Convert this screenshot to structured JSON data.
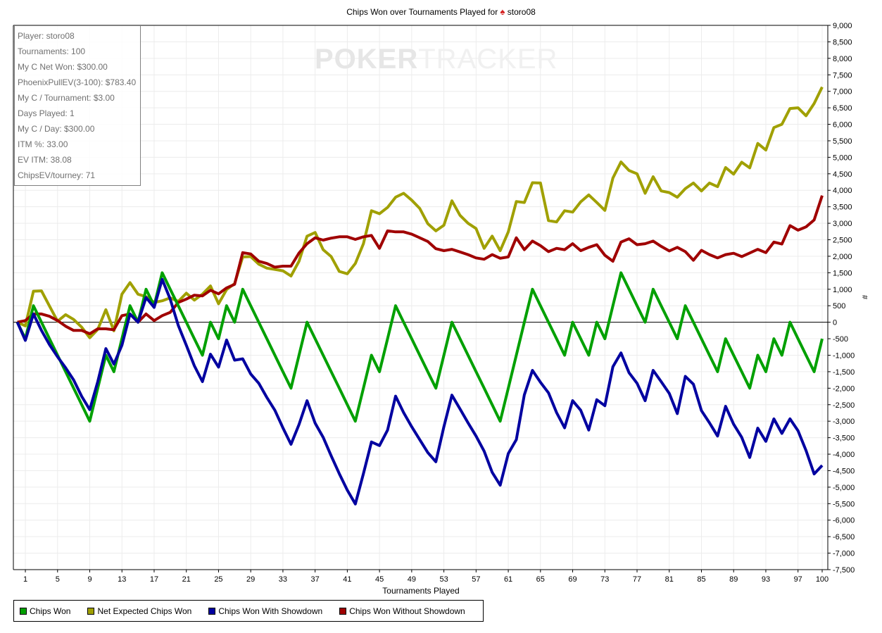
{
  "chart_data": {
    "type": "line",
    "title": "Chips Won over Tournaments Played for",
    "title_player": "storo08",
    "xlabel": "Tournaments Played",
    "ylabel": "#",
    "xlim": [
      0,
      100
    ],
    "ylim": [
      -7500,
      9000
    ],
    "grid": true,
    "legend_position": "bottom",
    "x_ticks": [
      "1",
      "5",
      "9",
      "13",
      "17",
      "21",
      "25",
      "29",
      "33",
      "37",
      "41",
      "45",
      "49",
      "53",
      "57",
      "61",
      "65",
      "69",
      "73",
      "77",
      "81",
      "85",
      "89",
      "93",
      "97",
      "100"
    ],
    "y_ticks": [
      "9,000",
      "8,500",
      "8,000",
      "7,500",
      "7,000",
      "6,500",
      "6,000",
      "5,500",
      "5,000",
      "4,500",
      "4,000",
      "3,500",
      "3,000",
      "2,500",
      "2,000",
      "1,500",
      "1,000",
      "500",
      "0",
      "-500",
      "-1,000",
      "-1,500",
      "-2,000",
      "-2,500",
      "-3,000",
      "-3,500",
      "-4,000",
      "-4,500",
      "-5,000",
      "-5,500",
      "-6,000",
      "-6,500",
      "-7,000",
      "-7,500"
    ],
    "series": [
      {
        "name": "Chips Won",
        "color": "#00a000",
        "values": [
          0,
          -500,
          500,
          0,
          -500,
          -1000,
          -1500,
          -2000,
          -2500,
          -3000,
          -2000,
          -1000,
          -1500,
          -500,
          500,
          0,
          1000,
          500,
          1500,
          1000,
          500,
          0,
          -500,
          -1000,
          0,
          -500,
          500,
          0,
          1000,
          500,
          0,
          -500,
          -1000,
          -1500,
          -2000,
          -1000,
          0,
          -500,
          -1000,
          -1500,
          -2000,
          -2500,
          -3000,
          -2000,
          -1000,
          -1500,
          -500,
          500,
          0,
          -500,
          -1000,
          -1500,
          -2000,
          -1000,
          0,
          -500,
          -1000,
          -1500,
          -2000,
          -2500,
          -3000,
          -2000,
          -1000,
          0,
          1000,
          500,
          0,
          -500,
          -1000,
          0,
          -500,
          -1000,
          0,
          -500,
          500,
          1500,
          1000,
          500,
          0,
          1000,
          500,
          0,
          -500,
          500,
          0,
          -500,
          -1000,
          -1500,
          -500,
          -1000,
          -1500,
          -2000,
          -1000,
          -1500,
          -500,
          -1000,
          0,
          -500,
          -1000,
          -1500,
          -500
        ]
      },
      {
        "name": "Net Expected Chips Won",
        "color": "#a0a000",
        "values": [
          0,
          -110,
          940,
          950,
          490,
          30,
          230,
          85,
          -150,
          -470,
          -220,
          380,
          -260,
          850,
          1200,
          850,
          775,
          600,
          650,
          740,
          630,
          880,
          670,
          850,
          1100,
          560,
          990,
          1170,
          1980,
          1990,
          1760,
          1640,
          1600,
          1560,
          1400,
          1850,
          2610,
          2720,
          2200,
          1990,
          1540,
          1470,
          1780,
          2380,
          3380,
          3290,
          3480,
          3790,
          3910,
          3700,
          3450,
          2990,
          2770,
          2940,
          3680,
          3240,
          3000,
          2840,
          2240,
          2610,
          2170,
          2740,
          3660,
          3630,
          4230,
          4220,
          3080,
          3040,
          3380,
          3340,
          3650,
          3860,
          3630,
          3390,
          4370,
          4860,
          4600,
          4500,
          3910,
          4410,
          3980,
          3930,
          3790,
          4050,
          4220,
          3980,
          4220,
          4110,
          4690,
          4490,
          4850,
          4680,
          5420,
          5220,
          5900,
          6000,
          6480,
          6500,
          6260,
          6630,
          7130
        ]
      },
      {
        "name": "Chips Won With Showdown",
        "color": "#0000a0",
        "values": [
          0,
          -550,
          250,
          -250,
          -680,
          -1050,
          -1380,
          -1750,
          -2250,
          -2650,
          -1800,
          -800,
          -1270,
          -700,
          250,
          0,
          750,
          450,
          1300,
          700,
          -100,
          -700,
          -1320,
          -1800,
          -970,
          -1360,
          -540,
          -1150,
          -1110,
          -1570,
          -1850,
          -2280,
          -2670,
          -3200,
          -3700,
          -3100,
          -2380,
          -3060,
          -3490,
          -4050,
          -4590,
          -5090,
          -5510,
          -4590,
          -3630,
          -3740,
          -3270,
          -2240,
          -2740,
          -3170,
          -3560,
          -3950,
          -4230,
          -3170,
          -2210,
          -2630,
          -3050,
          -3450,
          -3910,
          -4550,
          -4940,
          -3980,
          -3560,
          -2200,
          -1460,
          -1820,
          -2140,
          -2740,
          -3200,
          -2380,
          -2670,
          -3270,
          -2350,
          -2530,
          -1350,
          -930,
          -1530,
          -1850,
          -2380,
          -1460,
          -1800,
          -2160,
          -2770,
          -1640,
          -1880,
          -2680,
          -3050,
          -3450,
          -2550,
          -3090,
          -3490,
          -4100,
          -3210,
          -3610,
          -2930,
          -3370,
          -2930,
          -3290,
          -3890,
          -4600,
          -4340
        ]
      },
      {
        "name": "Chips Won Without Showdown",
        "color": "#a00000",
        "values": [
          0,
          50,
          250,
          250,
          180,
          50,
          -120,
          -250,
          -250,
          -350,
          -200,
          -200,
          -230,
          200,
          250,
          0,
          250,
          50,
          200,
          300,
          600,
          700,
          820,
          800,
          970,
          860,
          1040,
          1150,
          2110,
          2070,
          1850,
          1780,
          1670,
          1700,
          1700,
          2100,
          2380,
          2560,
          2490,
          2550,
          2590,
          2590,
          2510,
          2590,
          2630,
          2240,
          2770,
          2740,
          2740,
          2670,
          2560,
          2450,
          2230,
          2170,
          2210,
          2130,
          2050,
          1950,
          1910,
          2050,
          1940,
          1980,
          2560,
          2200,
          2460,
          2320,
          2140,
          2240,
          2200,
          2380,
          2170,
          2270,
          2350,
          2030,
          1850,
          2430,
          2530,
          2350,
          2380,
          2460,
          2300,
          2160,
          2270,
          2140,
          1880,
          2180,
          2050,
          1950,
          2050,
          2090,
          1990,
          2100,
          2210,
          2110,
          2430,
          2370,
          2930,
          2790,
          2890,
          3100,
          3840
        ]
      }
    ]
  },
  "watermark": {
    "part1": "POKER",
    "part2": "TRACKER"
  },
  "summary": [
    "Player: storo08",
    "Tournaments: 100",
    "My C Net Won: $300.00",
    "PhoenixPullEV(3-100): $783.40",
    "My C / Tournament: $3.00",
    "Days Played: 1",
    "My C / Day: $300.00",
    "ITM %: 33.00",
    "EV ITM: 38.08",
    "ChipsEV/tourney: 71"
  ],
  "icons": {
    "title_icon": "spade-icon"
  }
}
